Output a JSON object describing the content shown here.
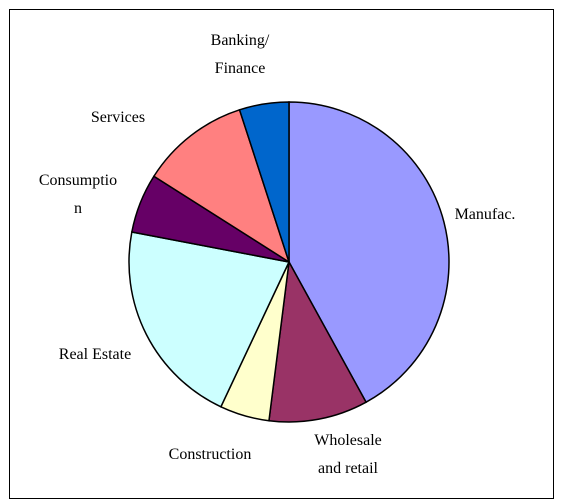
{
  "chart_data": {
    "type": "pie",
    "categories": [
      "Manufac.",
      "Wholesale and retail",
      "Construction",
      "Real Estate",
      "Consumption",
      "Services",
      "Banking/ Finance"
    ],
    "values": [
      42,
      10,
      5,
      21,
      6,
      11,
      5
    ],
    "colors": [
      "#9999ff",
      "#993366",
      "#ffffcc",
      "#ccffff",
      "#660066",
      "#ff8080",
      "#0066cc"
    ]
  }
}
